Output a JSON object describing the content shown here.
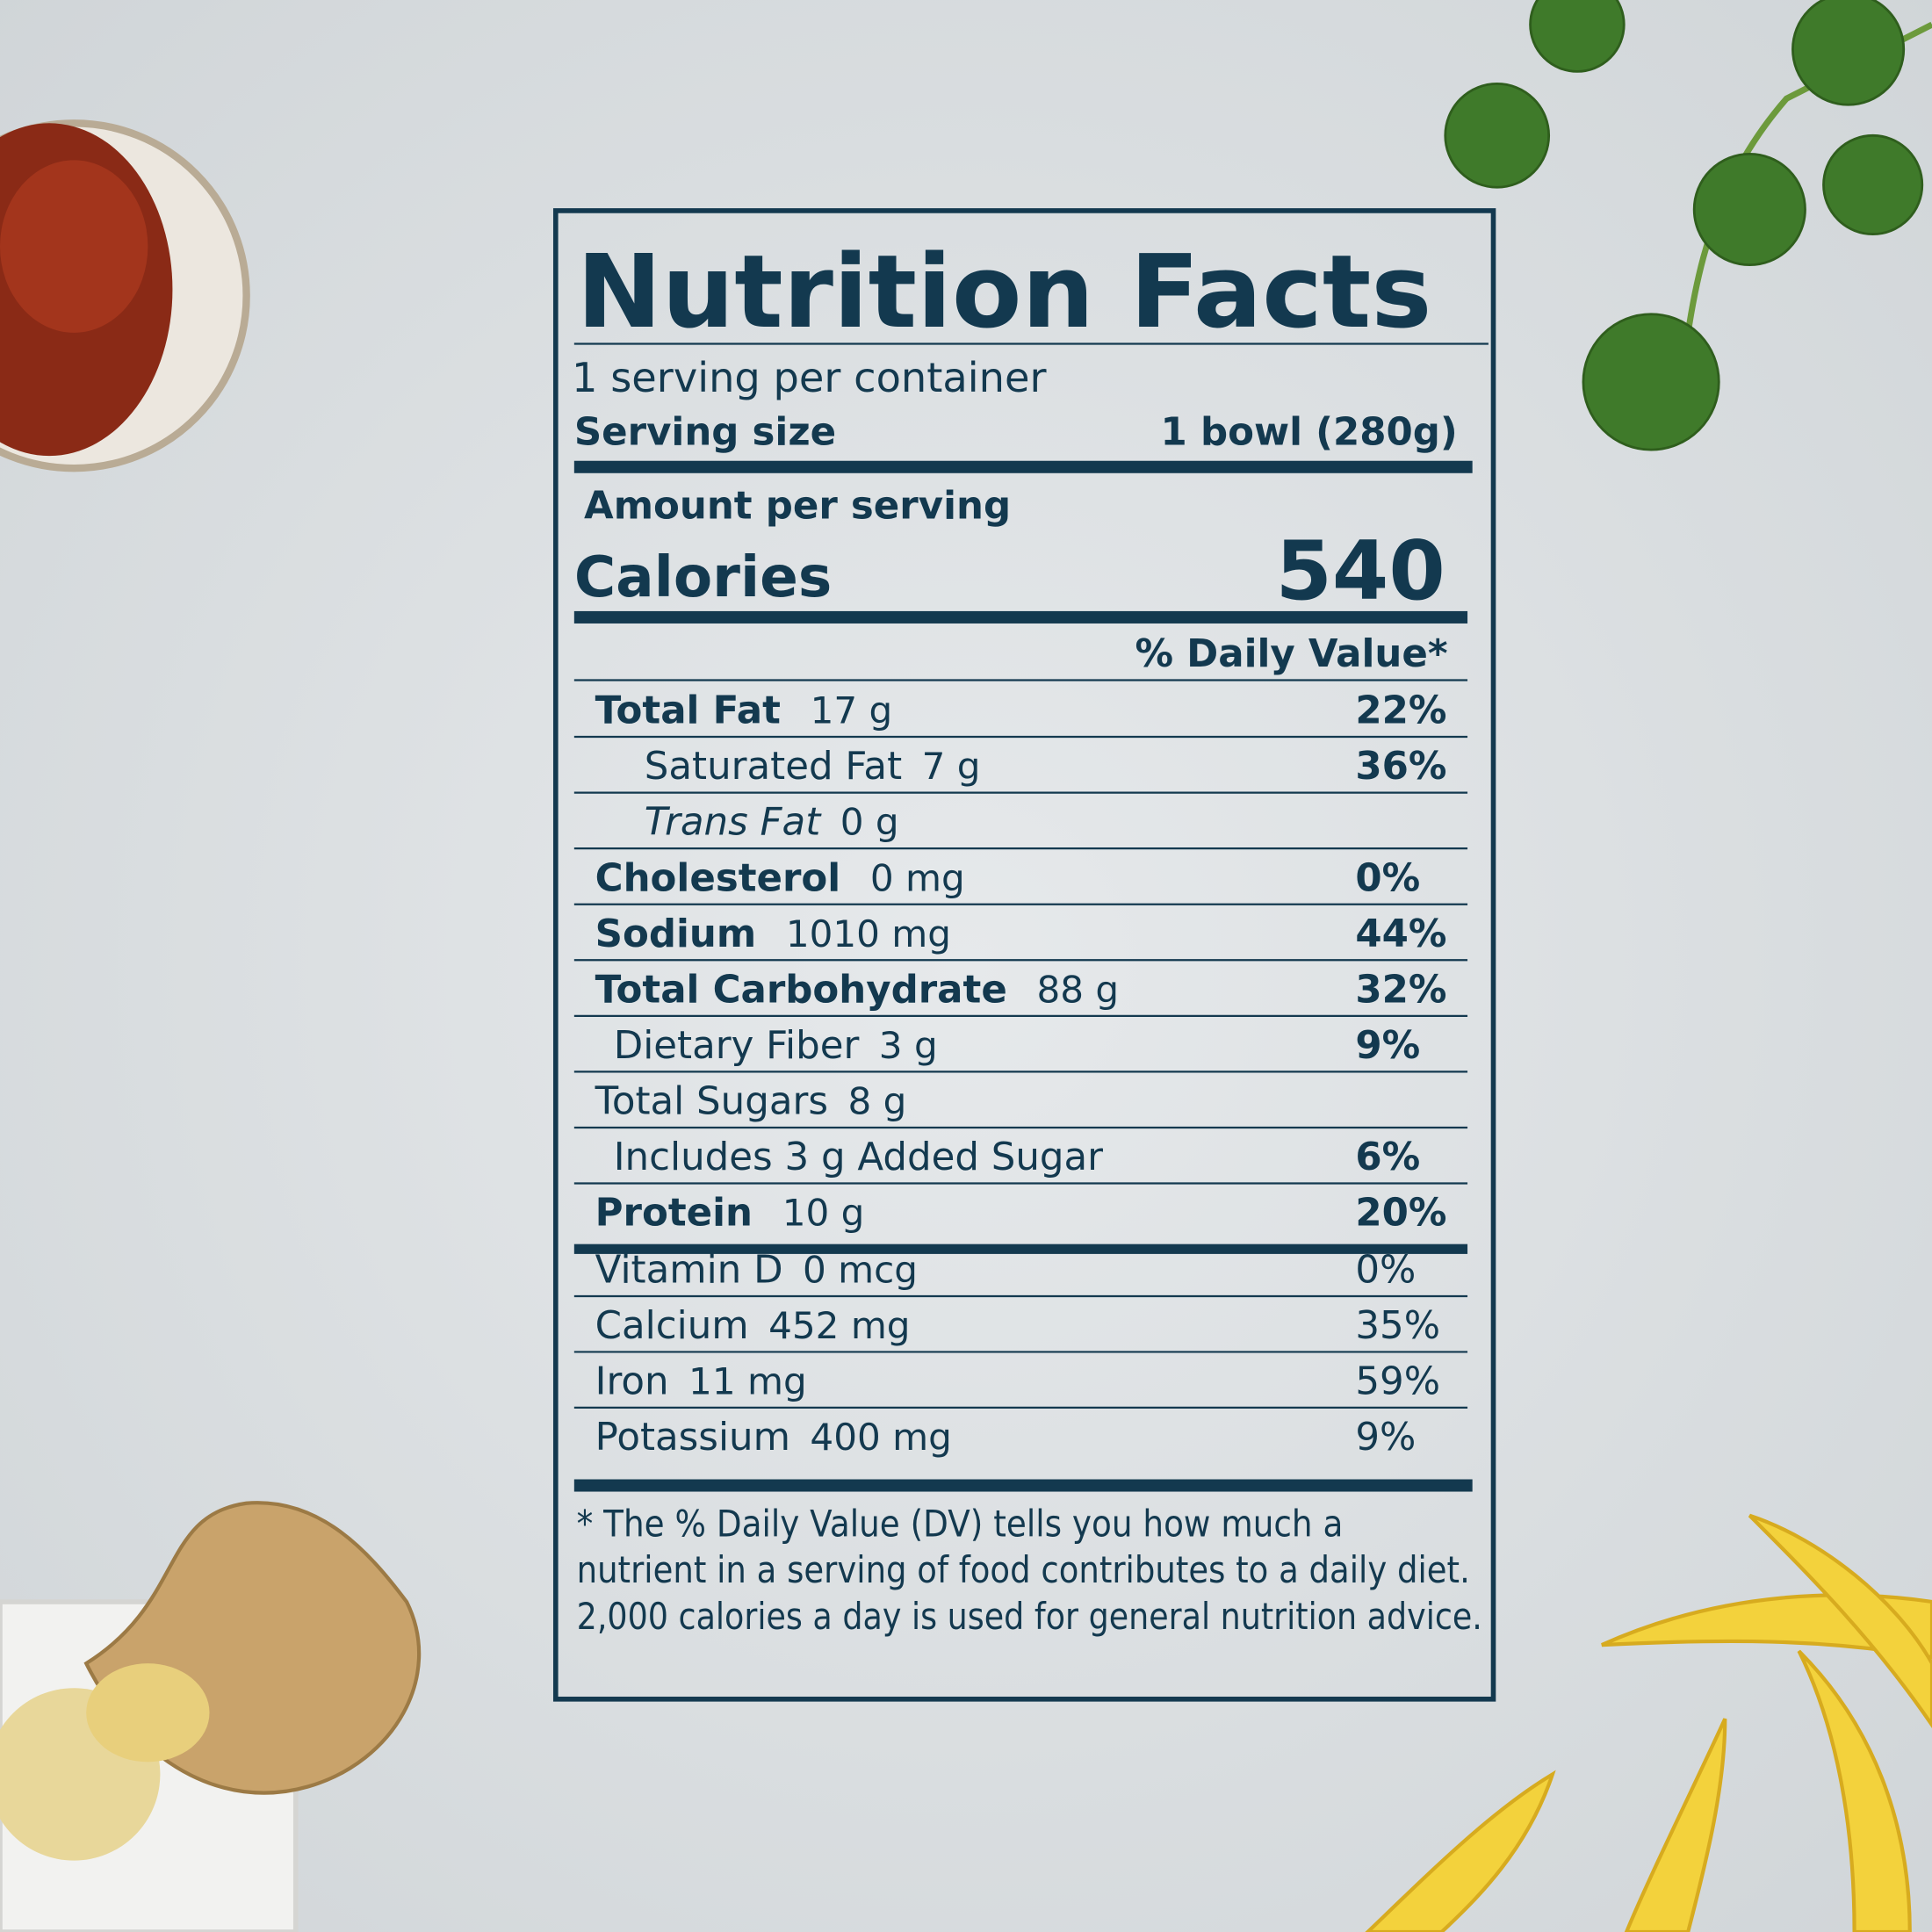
{
  "header": {
    "title": "Nutrition Facts",
    "servings": "1 serving per container",
    "serving_size_label": "Serving size",
    "serving_size_value": "1 bowl (280g)"
  },
  "calories": {
    "amount_label": "Amount per serving",
    "label": "Calories",
    "value": "540"
  },
  "daily_value_header": "% Daily Value*",
  "nutrients": [
    {
      "name": "Total Fat",
      "amount": "17 g",
      "dv": "22%"
    },
    {
      "name": "Saturated Fat",
      "amount": "7 g",
      "dv": "36%"
    },
    {
      "name": "Trans Fat",
      "amount": "0 g"
    },
    {
      "name": "Cholesterol",
      "amount": "0 mg",
      "dv": "0%"
    },
    {
      "name": "Sodium",
      "amount": "1010 mg",
      "dv": "44%"
    },
    {
      "name": "Total Carbohydrate",
      "amount": "88 g",
      "dv": "32%"
    },
    {
      "name": "Dietary Fiber",
      "amount": "3 g",
      "dv": "9%"
    },
    {
      "name": "Total Sugars",
      "amount": "8 g"
    },
    {
      "name": "Includes 3 g Added Sugar",
      "dv": "6%"
    },
    {
      "name": "Protein",
      "amount": "10 g",
      "dv": "20%"
    }
  ],
  "vitamins": [
    {
      "name": "Vitamin D",
      "amount": "0 mcg",
      "dv": "0%"
    },
    {
      "name": "Calcium",
      "amount": "452 mg",
      "dv": "35%"
    },
    {
      "name": "Iron",
      "amount": "11 mg",
      "dv": "59%"
    },
    {
      "name": "Potassium",
      "amount": "400 mg",
      "dv": "9%"
    }
  ],
  "footnote": [
    "* The % Daily Value (DV) tells you how much a",
    "nutrient in a serving of food contributes to a daily diet.",
    "2,000 calories a day is used for general nutrition advice."
  ]
}
